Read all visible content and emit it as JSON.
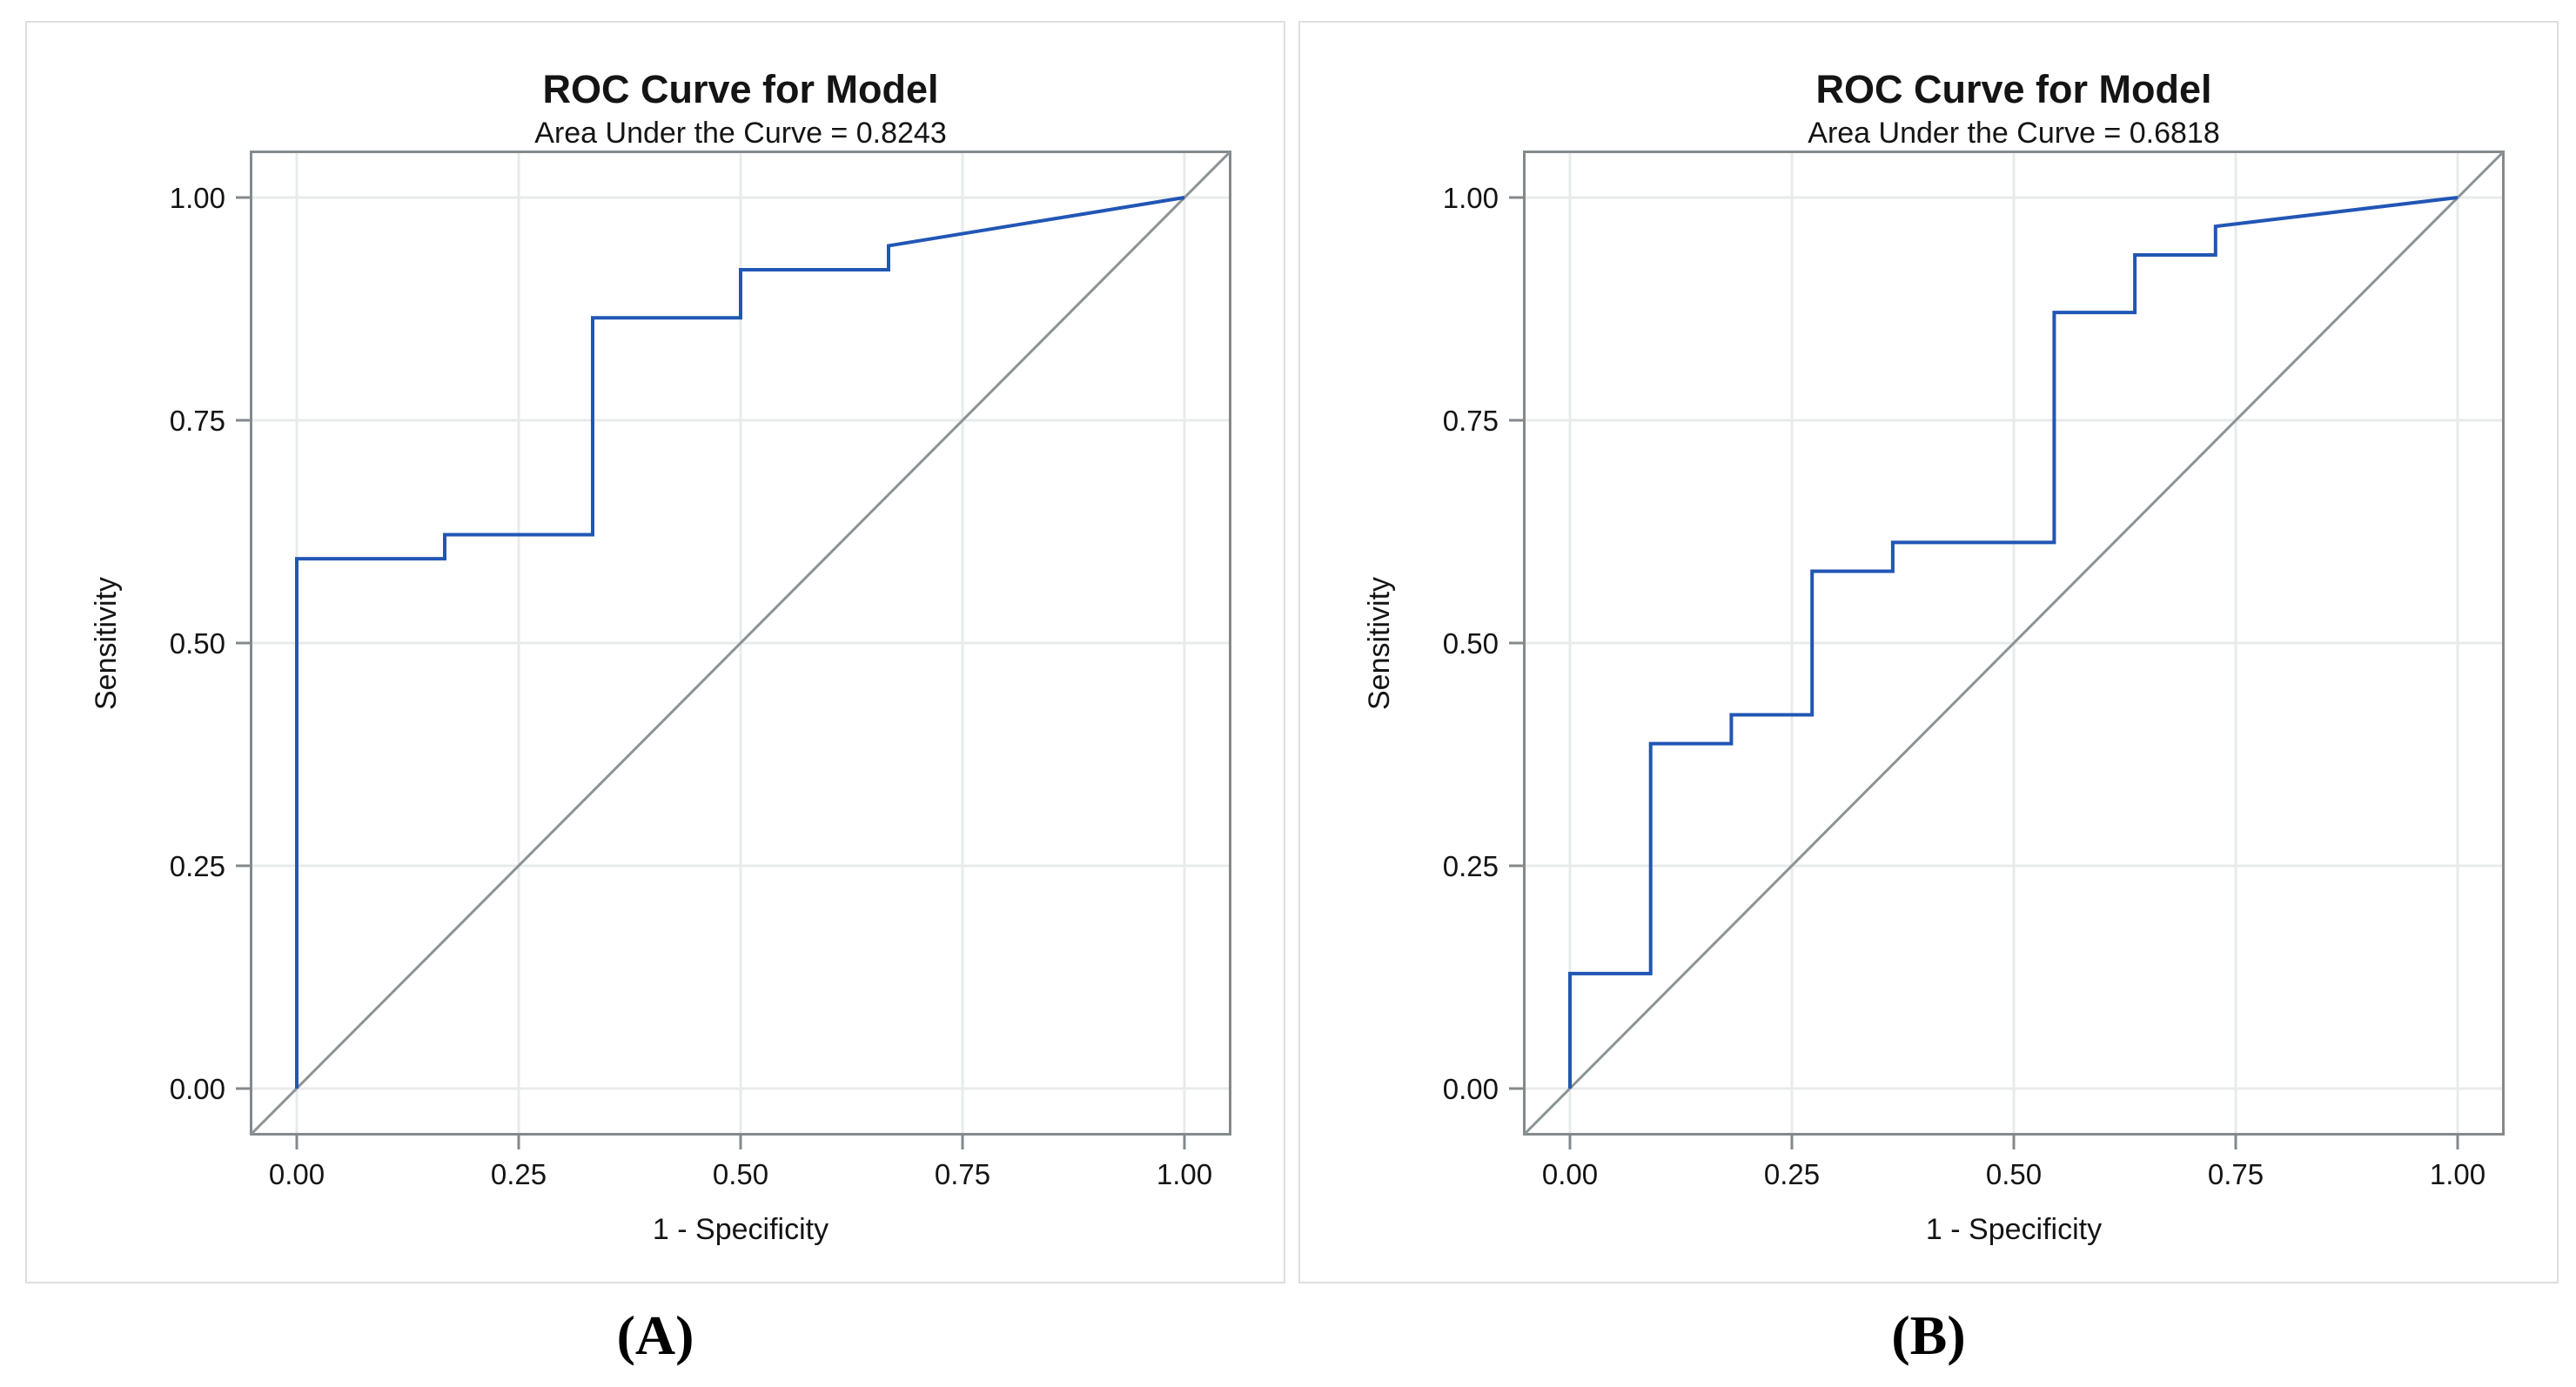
{
  "figure": {
    "panels": [
      {
        "id": "A",
        "title": "ROC Curve for Model",
        "subtitle": "Area Under the Curve = 0.8243",
        "auc": "0.8243",
        "xlabel": "1 - Specificity",
        "ylabel": "Sensitivity",
        "caption": "(A)"
      },
      {
        "id": "B",
        "title": "ROC Curve for Model",
        "subtitle": "Area Under the Curve = 0.6818",
        "auc": "0.6818",
        "xlabel": "1 - Specificity",
        "ylabel": "Sensitivity",
        "caption": "(B)"
      }
    ]
  },
  "colors": {
    "roc_curve": "#2156B5",
    "reference_line": "#8C9396",
    "frame": "#83898C",
    "gridline": "#E8EBEB",
    "text": "#141414",
    "panel_border": "#DEDEDE"
  },
  "chart_data": [
    {
      "type": "line",
      "title": "ROC Curve for Model",
      "subtitle": "Area Under the Curve = 0.8243",
      "xlabel": "1 - Specificity",
      "ylabel": "Sensitivity",
      "xlim": [
        0,
        1
      ],
      "ylim": [
        0,
        1
      ],
      "x_ticks": [
        "0.00",
        "0.25",
        "0.50",
        "0.75",
        "1.00"
      ],
      "y_ticks": [
        "0.00",
        "0.25",
        "0.50",
        "0.75",
        "1.00"
      ],
      "grid": true,
      "legend": "none",
      "grid_color": "#E8EBEB",
      "frame_color": "#83898C",
      "series": [
        {
          "name": "reference-diagonal",
          "role": "reference",
          "color": "#8C9396",
          "points": [
            [
              0,
              0
            ],
            [
              1,
              1
            ]
          ]
        },
        {
          "name": "roc-curve",
          "role": "data",
          "color": "#2156B5",
          "points": [
            [
              0,
              0
            ],
            [
              0,
              0.5946
            ],
            [
              0.1667,
              0.5946
            ],
            [
              0.1667,
              0.6216
            ],
            [
              0.3333,
              0.6216
            ],
            [
              0.3333,
              0.8649
            ],
            [
              0.5,
              0.8649
            ],
            [
              0.5,
              0.9189
            ],
            [
              0.6667,
              0.9189
            ],
            [
              0.6667,
              0.9459
            ],
            [
              1,
              1
            ]
          ]
        }
      ]
    },
    {
      "type": "line",
      "title": "ROC Curve for Model",
      "subtitle": "Area Under the Curve = 0.6818",
      "xlabel": "1 - Specificity",
      "ylabel": "Sensitivity",
      "xlim": [
        0,
        1
      ],
      "ylim": [
        0,
        1
      ],
      "x_ticks": [
        "0.00",
        "0.25",
        "0.50",
        "0.75",
        "1.00"
      ],
      "y_ticks": [
        "0.00",
        "0.25",
        "0.50",
        "0.75",
        "1.00"
      ],
      "grid": true,
      "legend": "none",
      "grid_color": "#E8EBEB",
      "frame_color": "#83898C",
      "series": [
        {
          "name": "reference-diagonal",
          "role": "reference",
          "color": "#8C9396",
          "points": [
            [
              0,
              0
            ],
            [
              1,
              1
            ]
          ]
        },
        {
          "name": "roc-curve",
          "role": "data",
          "color": "#2156B5",
          "points": [
            [
              0,
              0
            ],
            [
              0,
              0.129
            ],
            [
              0.0909,
              0.129
            ],
            [
              0.0909,
              0.3871
            ],
            [
              0.1818,
              0.3871
            ],
            [
              0.1818,
              0.4194
            ],
            [
              0.2727,
              0.4194
            ],
            [
              0.2727,
              0.5806
            ],
            [
              0.3636,
              0.5806
            ],
            [
              0.3636,
              0.6129
            ],
            [
              0.5455,
              0.6129
            ],
            [
              0.5455,
              0.871
            ],
            [
              0.6364,
              0.871
            ],
            [
              0.6364,
              0.9355
            ],
            [
              0.7273,
              0.9355
            ],
            [
              0.7273,
              0.9677
            ],
            [
              1,
              1
            ]
          ]
        }
      ]
    }
  ]
}
